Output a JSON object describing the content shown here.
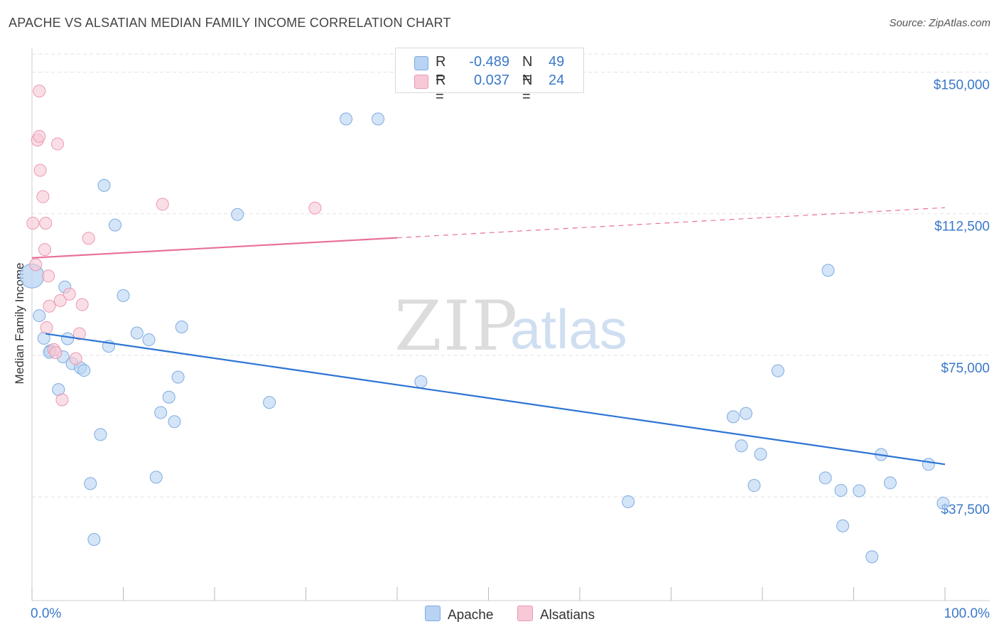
{
  "title": "APACHE VS ALSATIAN MEDIAN FAMILY INCOME CORRELATION CHART",
  "source": "Source: ZipAtlas.com",
  "watermark": {
    "zip": "ZIP",
    "atlas": "atlas"
  },
  "legend": {
    "series": [
      {
        "name": "Apache",
        "r_label": "R =",
        "r_value": "-0.489",
        "n_label": "N =",
        "n_value": "49",
        "color": "#b8d3f3",
        "stroke": "#7fabe0"
      },
      {
        "name": "Alsatians",
        "r_label": "R =",
        "r_value": "0.037",
        "n_label": "N =",
        "n_value": "24",
        "color": "#f7c8d6",
        "stroke": "#eb98b1"
      }
    ]
  },
  "chart_data": {
    "type": "scatter",
    "xlabel": "",
    "ylabel": "Median Family Income",
    "xlim": [
      0,
      100
    ],
    "ylim": [
      10000,
      155000
    ],
    "x_tick_labels": [
      "0.0%",
      "100.0%"
    ],
    "y_ticks": [
      37500,
      75000,
      112500,
      150000
    ],
    "y_tick_labels": [
      "$37,500",
      "$75,000",
      "$112,500",
      "$150,000"
    ],
    "grid": true,
    "series": [
      {
        "name": "Apache",
        "color": "#b8d3f3",
        "stroke": "#7fabe0",
        "trend_color": "#2d74d3",
        "trend": {
          "x0": 1.5,
          "y0": 80700,
          "x1": 100,
          "y1": 46100,
          "solid_to": 100
        },
        "points": [
          [
            0,
            96000
          ],
          [
            0.8,
            85500
          ],
          [
            1.3,
            79500
          ],
          [
            2.0,
            76200
          ],
          [
            1.9,
            75800
          ],
          [
            3.4,
            74600
          ],
          [
            3.6,
            93100
          ],
          [
            3.9,
            79400
          ],
          [
            4.4,
            72800
          ],
          [
            5.3,
            71700
          ],
          [
            5.7,
            71000
          ],
          [
            2.9,
            65900
          ],
          [
            7.5,
            54000
          ],
          [
            6.4,
            41000
          ],
          [
            6.8,
            26200
          ],
          [
            7.9,
            120000
          ],
          [
            8.4,
            77400
          ],
          [
            9.1,
            109500
          ],
          [
            10.0,
            90800
          ],
          [
            11.5,
            80900
          ],
          [
            12.8,
            79100
          ],
          [
            13.6,
            42700
          ],
          [
            14.1,
            59800
          ],
          [
            15.0,
            63900
          ],
          [
            15.6,
            57400
          ],
          [
            16.0,
            69200
          ],
          [
            16.4,
            82500
          ],
          [
            22.5,
            112300
          ],
          [
            26.0,
            62500
          ],
          [
            34.4,
            137600
          ],
          [
            37.9,
            137600
          ],
          [
            42.6,
            68000
          ],
          [
            65.3,
            36200
          ],
          [
            76.8,
            58700
          ],
          [
            77.7,
            51000
          ],
          [
            78.2,
            59600
          ],
          [
            79.1,
            40500
          ],
          [
            79.8,
            48800
          ],
          [
            81.7,
            70900
          ],
          [
            87.2,
            97500
          ],
          [
            86.9,
            42500
          ],
          [
            88.6,
            39200
          ],
          [
            90.6,
            39100
          ],
          [
            88.8,
            29800
          ],
          [
            92.0,
            21600
          ],
          [
            93.0,
            48700
          ],
          [
            94.0,
            41200
          ],
          [
            98.2,
            46100
          ],
          [
            99.8,
            35800
          ]
        ]
      },
      {
        "name": "Alsatians",
        "color": "#f7c8d6",
        "stroke": "#eb98b1",
        "trend_color": "#e8709a",
        "trend": {
          "x0": 0,
          "y0": 100800,
          "x1": 100,
          "y1": 114100,
          "solid_to": 40
        },
        "points": [
          [
            0.1,
            110000
          ],
          [
            0.4,
            99000
          ],
          [
            0.6,
            132000
          ],
          [
            0.8,
            145000
          ],
          [
            0.8,
            133000
          ],
          [
            0.9,
            124000
          ],
          [
            1.2,
            117000
          ],
          [
            1.5,
            110000
          ],
          [
            1.4,
            103000
          ],
          [
            1.8,
            96000
          ],
          [
            1.6,
            82300
          ],
          [
            1.9,
            88000
          ],
          [
            2.4,
            76500
          ],
          [
            2.6,
            75700
          ],
          [
            2.8,
            131000
          ],
          [
            3.1,
            89500
          ],
          [
            3.3,
            63200
          ],
          [
            4.1,
            91200
          ],
          [
            4.8,
            74100
          ],
          [
            5.2,
            80700
          ],
          [
            5.5,
            88400
          ],
          [
            6.2,
            106000
          ],
          [
            14.3,
            115000
          ],
          [
            31.0,
            114000
          ]
        ]
      }
    ]
  }
}
